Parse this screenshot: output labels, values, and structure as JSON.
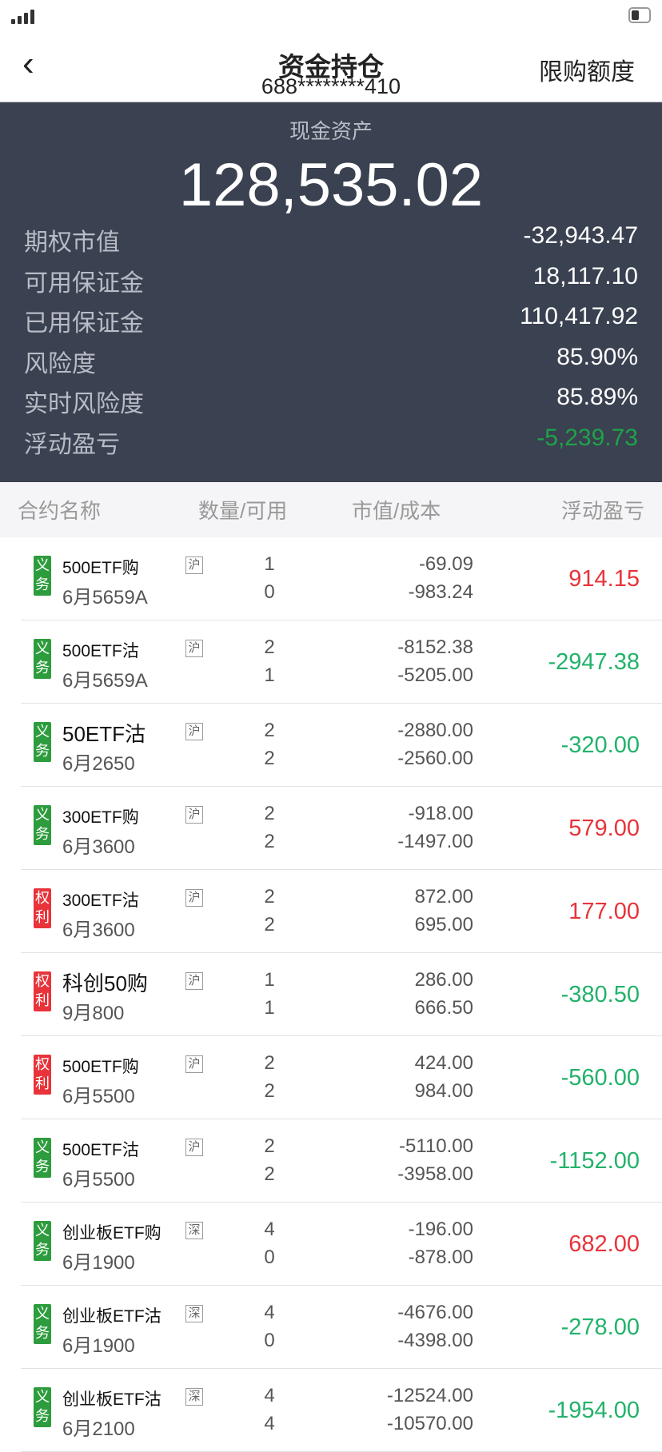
{
  "nav": {
    "title": "资金持仓",
    "account": "688********410",
    "limit_button": "限购额度"
  },
  "summary": {
    "cash_label": "现金资产",
    "cash_value": "128,535.02",
    "rows": [
      {
        "label": "期权市值",
        "value": "-32,943.47",
        "color": "#ffffff"
      },
      {
        "label": "可用保证金",
        "value": "18,117.10",
        "color": "#ffffff"
      },
      {
        "label": "已用保证金",
        "value": "110,417.92",
        "color": "#ffffff"
      },
      {
        "label": "风险度",
        "value": "85.90%",
        "color": "#ffffff"
      },
      {
        "label": "实时风险度",
        "value": "85.89%",
        "color": "#ffffff"
      },
      {
        "label": "浮动盈亏",
        "value": "-5,239.73",
        "color": "#1fa24a"
      }
    ]
  },
  "table": {
    "headers": [
      "合约名称",
      "数量/可用",
      "市值/成本",
      "浮动盈亏"
    ],
    "rows": [
      {
        "tag": "义务",
        "tag_color": "#2c9c3c",
        "name": "500ETF购",
        "expiry": "6月5659A",
        "exchange": "沪",
        "qty": "1",
        "avail": "0",
        "mv": "-69.09",
        "cost": "-983.24",
        "pl": "914.15",
        "pl_color": "#e8333a"
      },
      {
        "tag": "义务",
        "tag_color": "#2c9c3c",
        "name": "500ETF沽",
        "expiry": "6月5659A",
        "exchange": "沪",
        "qty": "2",
        "avail": "1",
        "mv": "-8152.38",
        "cost": "-5205.00",
        "pl": "-2947.38",
        "pl_color": "#22b26a"
      },
      {
        "tag": "义务",
        "tag_color": "#2c9c3c",
        "name": "50ETF沽",
        "expiry": "6月2650",
        "exchange": "沪",
        "qty": "2",
        "avail": "2",
        "mv": "-2880.00",
        "cost": "-2560.00",
        "pl": "-320.00",
        "pl_color": "#22b26a"
      },
      {
        "tag": "义务",
        "tag_color": "#2c9c3c",
        "name": "300ETF购",
        "expiry": "6月3600",
        "exchange": "沪",
        "qty": "2",
        "avail": "2",
        "mv": "-918.00",
        "cost": "-1497.00",
        "pl": "579.00",
        "pl_color": "#e8333a"
      },
      {
        "tag": "权利",
        "tag_color": "#e8333a",
        "name": "300ETF沽",
        "expiry": "6月3600",
        "exchange": "沪",
        "qty": "2",
        "avail": "2",
        "mv": "872.00",
        "cost": "695.00",
        "pl": "177.00",
        "pl_color": "#e8333a"
      },
      {
        "tag": "权利",
        "tag_color": "#e8333a",
        "name": "科创50购",
        "expiry": "9月800",
        "exchange": "沪",
        "qty": "1",
        "avail": "1",
        "mv": "286.00",
        "cost": "666.50",
        "pl": "-380.50",
        "pl_color": "#22b26a"
      },
      {
        "tag": "权利",
        "tag_color": "#e8333a",
        "name": "500ETF购",
        "expiry": "6月5500",
        "exchange": "沪",
        "qty": "2",
        "avail": "2",
        "mv": "424.00",
        "cost": "984.00",
        "pl": "-560.00",
        "pl_color": "#22b26a"
      },
      {
        "tag": "义务",
        "tag_color": "#2c9c3c",
        "name": "500ETF沽",
        "expiry": "6月5500",
        "exchange": "沪",
        "qty": "2",
        "avail": "2",
        "mv": "-5110.00",
        "cost": "-3958.00",
        "pl": "-1152.00",
        "pl_color": "#22b26a"
      },
      {
        "tag": "义务",
        "tag_color": "#2c9c3c",
        "name": "创业板ETF购",
        "expiry": "6月1900",
        "exchange": "深",
        "qty": "4",
        "avail": "0",
        "mv": "-196.00",
        "cost": "-878.00",
        "pl": "682.00",
        "pl_color": "#e8333a"
      },
      {
        "tag": "义务",
        "tag_color": "#2c9c3c",
        "name": "创业板ETF沽",
        "expiry": "6月1900",
        "exchange": "深",
        "qty": "4",
        "avail": "0",
        "mv": "-4676.00",
        "cost": "-4398.00",
        "pl": "-278.00",
        "pl_color": "#22b26a"
      },
      {
        "tag": "义务",
        "tag_color": "#2c9c3c",
        "name": "创业板ETF沽",
        "expiry": "6月2100",
        "exchange": "深",
        "qty": "4",
        "avail": "4",
        "mv": "-12524.00",
        "cost": "-10570.00",
        "pl": "-1954.00",
        "pl_color": "#22b26a"
      }
    ]
  }
}
